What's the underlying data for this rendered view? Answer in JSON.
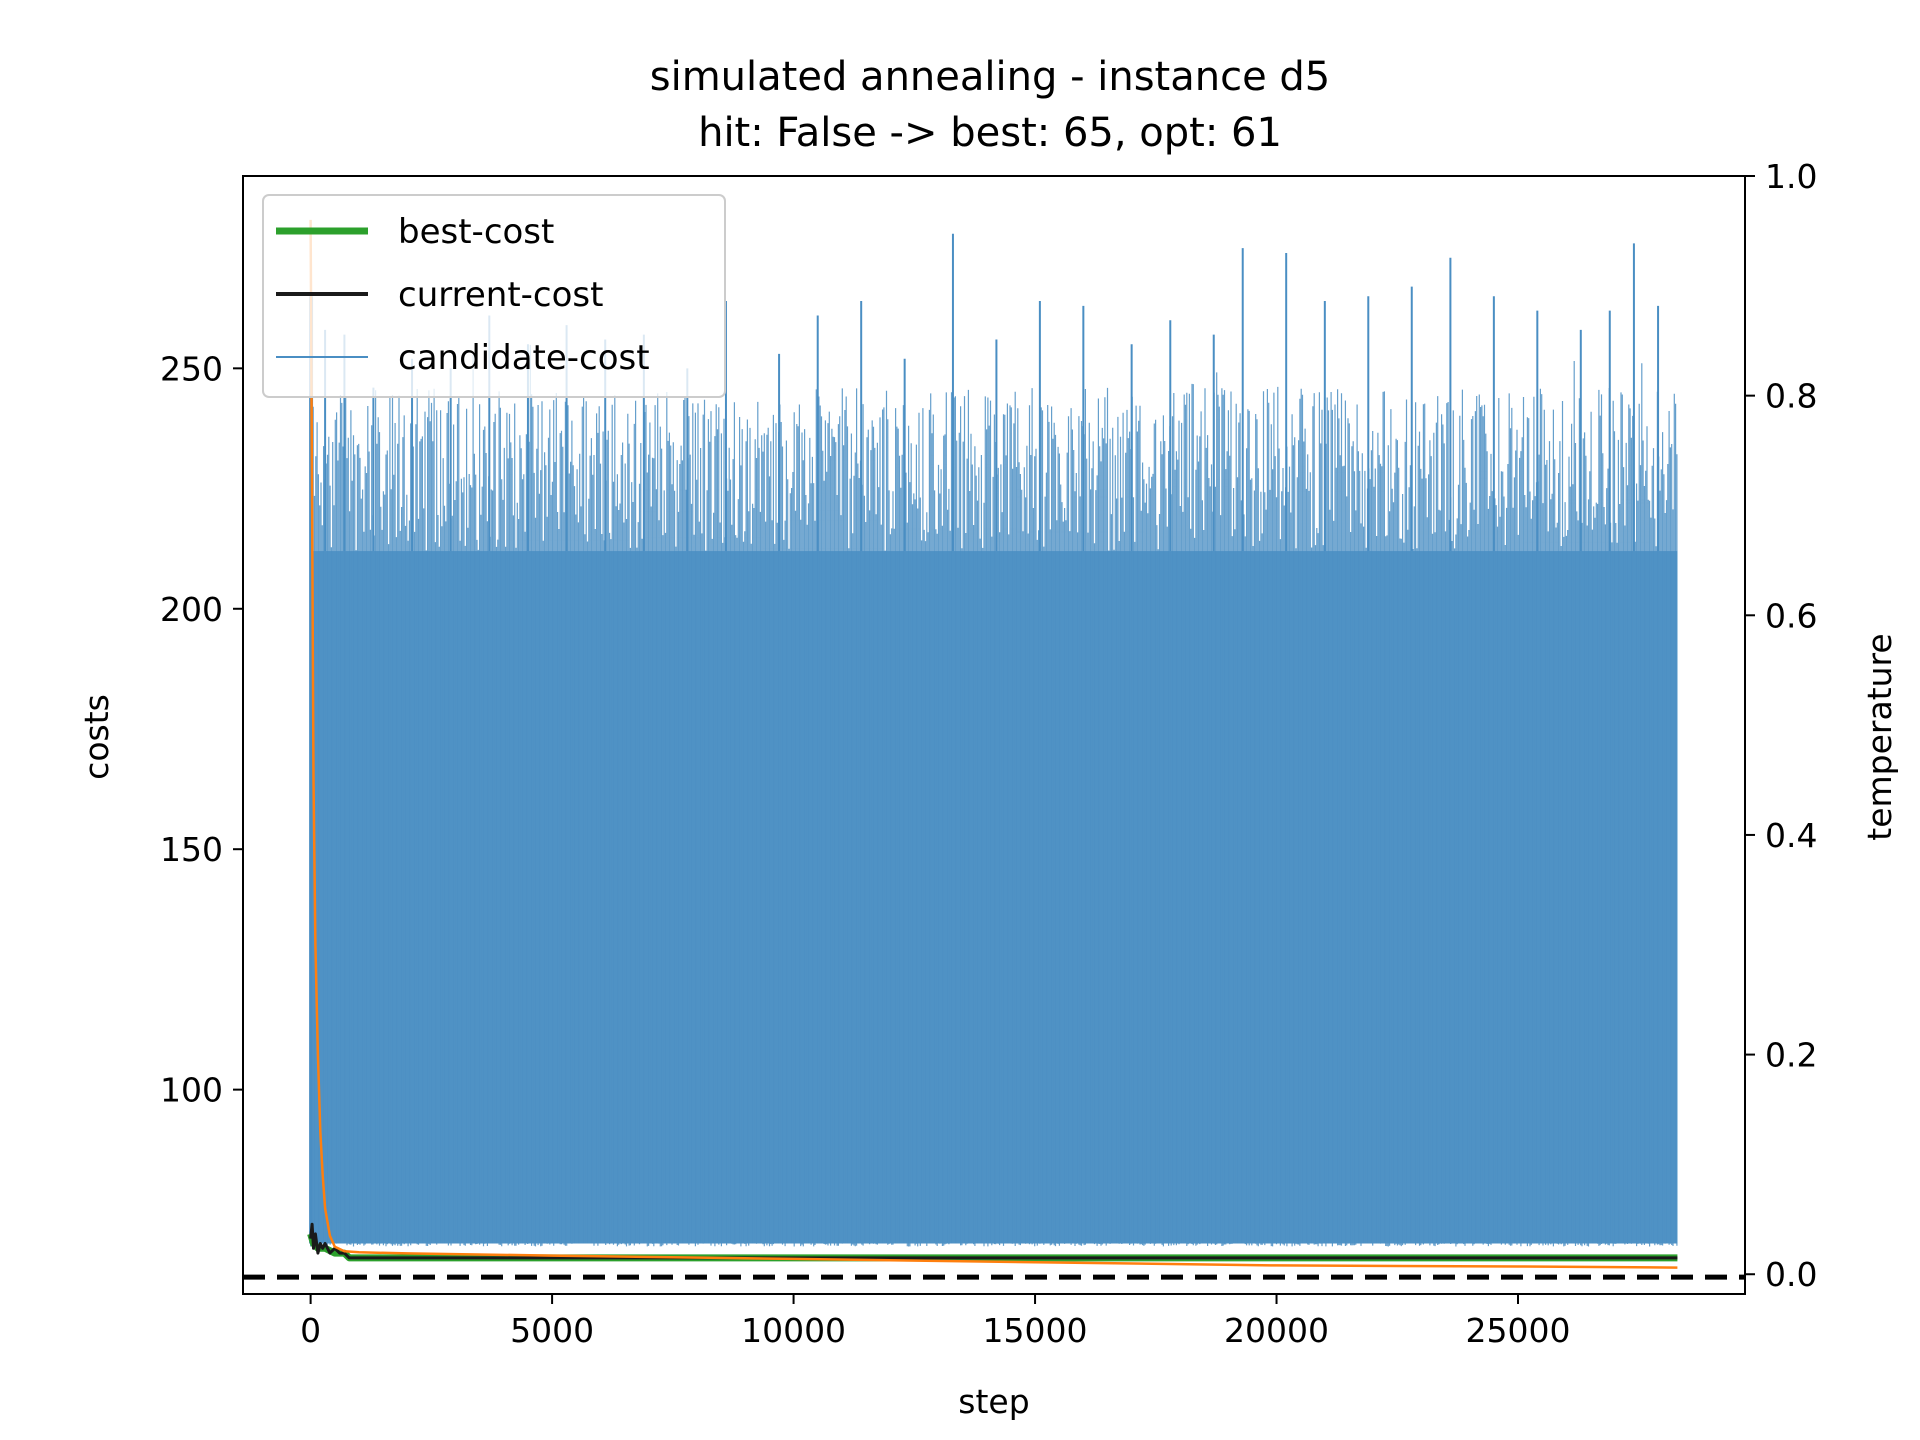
{
  "chart_data": {
    "type": "line",
    "title": "simulated annealing - instance d5",
    "subtitle": "hit: False -> best: 65, opt: 61",
    "xlabel": "step",
    "ylabel": "costs",
    "y2label": "temperature",
    "xlim": [
      -1400,
      29700
    ],
    "ylim": [
      57.5,
      290
    ],
    "y2lim": [
      -0.018,
      1.0
    ],
    "xticks": [
      0,
      5000,
      10000,
      15000,
      20000,
      25000
    ],
    "yticks": [
      100,
      150,
      200,
      250
    ],
    "y2ticks": [
      0.0,
      0.2,
      0.4,
      0.6,
      0.8,
      1.0
    ],
    "xtick_labels": [
      "0",
      "5000",
      "10000",
      "15000",
      "20000",
      "25000"
    ],
    "ytick_labels": [
      "100",
      "150",
      "200",
      "250"
    ],
    "y2tick_labels": [
      "0.0",
      "0.2",
      "0.4",
      "0.6",
      "0.8",
      "1.0"
    ],
    "grid": false,
    "legend_position": "top-left",
    "opt_line": 61,
    "series": [
      {
        "name": "best-cost",
        "color": "#2ca02c",
        "x": [
          0,
          60,
          150,
          300,
          500,
          700,
          800,
          28300
        ],
        "y": [
          70,
          68,
          67,
          67,
          66,
          66,
          65,
          65
        ]
      },
      {
        "name": "current-cost",
        "color": "#1a1a1a",
        "x": [
          0,
          30,
          60,
          100,
          150,
          200,
          250,
          300,
          400,
          500,
          600,
          700,
          800,
          28300
        ],
        "y": [
          69,
          72,
          67,
          70,
          66,
          68,
          67,
          68,
          66,
          67,
          66,
          66,
          65,
          65
        ]
      },
      {
        "name": "candidate-cost",
        "color": "#4a8ec3",
        "x_range": [
          0,
          28300
        ],
        "band_low": 68,
        "band_high": 212,
        "peak_x": [
          30,
          300,
          700,
          1300,
          2100,
          2900,
          3700,
          4500,
          5300,
          6100,
          6900,
          7800,
          8600,
          9700,
          10500,
          11400,
          12300,
          13300,
          14200,
          15100,
          16000,
          17000,
          17800,
          18700,
          19300,
          20200,
          21000,
          21900,
          22800,
          23600,
          24500,
          25400,
          26300,
          26900,
          27400,
          27900
        ],
        "peak_y": [
          265,
          258,
          257,
          246,
          252,
          250,
          261,
          255,
          259,
          256,
          257,
          250,
          264,
          253,
          261,
          264,
          252,
          278,
          256,
          264,
          263,
          255,
          260,
          257,
          275,
          274,
          264,
          265,
          267,
          273,
          265,
          262,
          258,
          262,
          276,
          263
        ]
      },
      {
        "name": "temperature",
        "axis": "right",
        "color": "#ff7f0e",
        "x": [
          0,
          30,
          60,
          100,
          150,
          200,
          250,
          300,
          400,
          500,
          700,
          1000,
          2000,
          5000,
          10000,
          15000,
          20000,
          25000,
          28300
        ],
        "y": [
          0.96,
          0.7,
          0.45,
          0.3,
          0.2,
          0.13,
          0.09,
          0.06,
          0.035,
          0.025,
          0.021,
          0.02,
          0.019,
          0.017,
          0.014,
          0.011,
          0.008,
          0.007,
          0.006
        ]
      }
    ]
  }
}
